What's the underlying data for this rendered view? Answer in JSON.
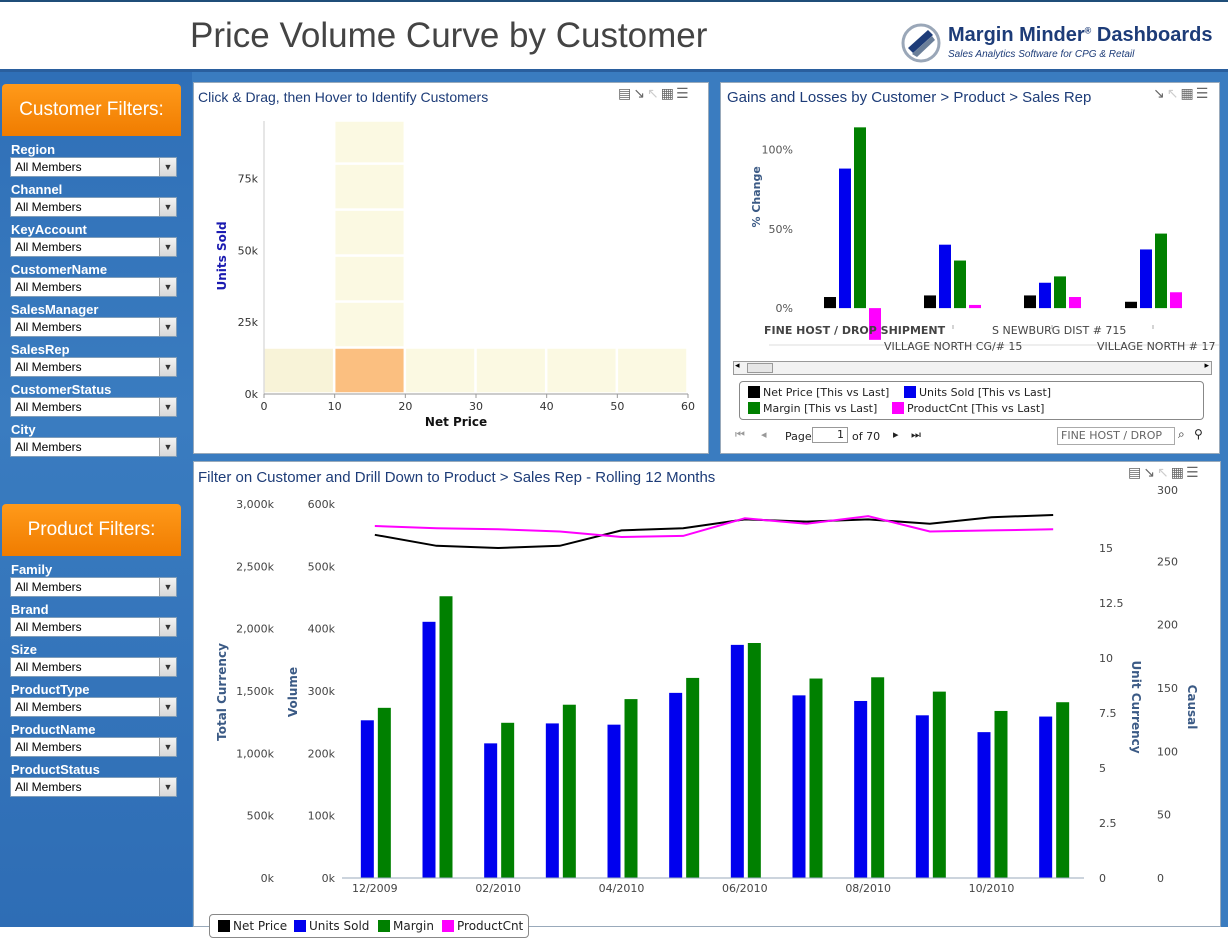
{
  "header": {
    "title": "Price Volume Curve by Customer",
    "logo_name": "Margin Minder",
    "logo_reg": "®",
    "logo_suffix": "Dashboards",
    "logo_tagline": "Sales Analytics Software for CPG & Retail"
  },
  "customer_filters": {
    "heading": "Customer Filters:",
    "items": [
      {
        "label": "Region",
        "value": "All Members"
      },
      {
        "label": "Channel",
        "value": "All Members"
      },
      {
        "label": "KeyAccount",
        "value": "All Members"
      },
      {
        "label": "CustomerName",
        "value": "All Members"
      },
      {
        "label": "SalesManager",
        "value": "All Members"
      },
      {
        "label": "SalesRep",
        "value": "All Members"
      },
      {
        "label": "CustomerStatus",
        "value": "All Members"
      },
      {
        "label": "City",
        "value": "All Members"
      }
    ]
  },
  "product_filters": {
    "heading": "Product Filters:",
    "items": [
      {
        "label": "Family",
        "value": "All Members"
      },
      {
        "label": "Brand",
        "value": "All Members"
      },
      {
        "label": "Size",
        "value": "All Members"
      },
      {
        "label": "ProductType",
        "value": "All Members"
      },
      {
        "label": "ProductName",
        "value": "All Members"
      },
      {
        "label": "ProductStatus",
        "value": "All Members"
      }
    ]
  },
  "panel1": {
    "title": "Click & Drag, then Hover to Identify Customers"
  },
  "panel2": {
    "title": "Gains and Losses by Customer > Product > Sales Rep",
    "legend": [
      {
        "name": "Net Price [This vs Last]",
        "color": "#000000"
      },
      {
        "name": "Units Sold [This vs Last]",
        "color": "#0000ee"
      },
      {
        "name": "Margin [This vs Last]",
        "color": "#008000"
      },
      {
        "name": "ProductCnt [This vs Last]",
        "color": "#ff00ff"
      }
    ],
    "pager": {
      "page_label": "Page",
      "page_value": "1",
      "of_label": "of 70",
      "search_value": "FINE HOST / DROP"
    }
  },
  "panel3": {
    "title": "Filter on Customer and Drill Down to Product > Sales Rep - Rolling 12 Months",
    "legend": [
      "Net Price",
      "Units Sold",
      "Margin",
      "ProductCnt"
    ]
  },
  "chart_data": [
    {
      "type": "heatmap",
      "title": "Click & Drag, then Hover to Identify Customers",
      "xlabel": "Net Price",
      "ylabel": "Units Sold",
      "x_ticks": [
        "0",
        "10",
        "20",
        "30",
        "40",
        "50",
        "60"
      ],
      "y_ticks": [
        "0k",
        "25k",
        "50k",
        "75k"
      ],
      "xlim": [
        0,
        60
      ],
      "ylim": [
        0,
        95000
      ],
      "cells": [
        {
          "x0": 0,
          "x1": 10,
          "y0": 0,
          "y1": 16000,
          "intensity": 0.3
        },
        {
          "x0": 10,
          "x1": 20,
          "y0": 0,
          "y1": 16000,
          "intensity": 1.0
        },
        {
          "x0": 20,
          "x1": 30,
          "y0": 0,
          "y1": 16000,
          "intensity": 0.15
        },
        {
          "x0": 30,
          "x1": 40,
          "y0": 0,
          "y1": 16000,
          "intensity": 0.15
        },
        {
          "x0": 40,
          "x1": 50,
          "y0": 0,
          "y1": 16000,
          "intensity": 0.15
        },
        {
          "x0": 50,
          "x1": 60,
          "y0": 0,
          "y1": 16000,
          "intensity": 0.15
        },
        {
          "x0": 10,
          "x1": 20,
          "y0": 16000,
          "y1": 32000,
          "intensity": 0.15
        },
        {
          "x0": 10,
          "x1": 20,
          "y0": 32000,
          "y1": 48000,
          "intensity": 0.15
        },
        {
          "x0": 10,
          "x1": 20,
          "y0": 48000,
          "y1": 64000,
          "intensity": 0.15
        },
        {
          "x0": 10,
          "x1": 20,
          "y0": 64000,
          "y1": 80000,
          "intensity": 0.15
        },
        {
          "x0": 10,
          "x1": 20,
          "y0": 80000,
          "y1": 95000,
          "intensity": 0.15
        }
      ]
    },
    {
      "type": "bar",
      "title": "Gains and Losses by Customer > Product > Sales Rep",
      "ylabel": "% Change",
      "y_ticks": [
        "0%",
        "50%",
        "100%"
      ],
      "ylim": [
        -22,
        118
      ],
      "categories": [
        "FINE HOST / DROP SHIPMENT",
        "VILLAGE NORTH CG/# 15",
        "S NEWBURG DIST # 715",
        "VILLAGE NORTH # 17"
      ],
      "series": [
        {
          "name": "Net Price [This vs Last]",
          "color": "#000000",
          "values": [
            7,
            8,
            8,
            4
          ]
        },
        {
          "name": "Units Sold [This vs Last]",
          "color": "#0000ee",
          "values": [
            88,
            40,
            16,
            37
          ]
        },
        {
          "name": "Margin [This vs Last]",
          "color": "#008000",
          "values": [
            114,
            30,
            20,
            47
          ]
        },
        {
          "name": "ProductCnt [This vs Last]",
          "color": "#ff00ff",
          "values": [
            -20,
            2,
            7,
            10
          ]
        }
      ]
    },
    {
      "type": "bar",
      "title": "Filter on Customer and Drill Down to Product > Sales Rep - Rolling 12 Months",
      "left_axes": [
        {
          "label": "Total Currency",
          "ticks": [
            "0k",
            "500k",
            "1,000k",
            "1,500k",
            "2,000k",
            "2,500k",
            "3,000k"
          ]
        },
        {
          "label": "Volume",
          "ticks": [
            "0k",
            "100k",
            "200k",
            "300k",
            "400k",
            "500k",
            "600k"
          ]
        }
      ],
      "right_axes": [
        {
          "label": "Unit Currency",
          "ticks": [
            "0",
            "2.5",
            "5",
            "7.5",
            "10",
            "12.5",
            "15"
          ]
        },
        {
          "label": "Causal",
          "ticks": [
            "0",
            "50",
            "100",
            "150",
            "200",
            "250",
            "300"
          ]
        }
      ],
      "x_tick_labels": [
        "12/2009",
        "02/2010",
        "04/2010",
        "06/2010",
        "08/2010",
        "10/2010"
      ],
      "categories": [
        "12/2009",
        "01/2010",
        "02/2010",
        "03/2010",
        "04/2010",
        "05/2010",
        "06/2010",
        "07/2010",
        "08/2010",
        "09/2010",
        "10/2010",
        "11/2010"
      ],
      "ylim_volume": [
        0,
        600000
      ],
      "ylim_unit_currency": [
        0,
        17
      ],
      "series": [
        {
          "name": "Units Sold",
          "color": "#0000ee",
          "kind": "bar",
          "values": [
            253000,
            411000,
            216000,
            248000,
            246000,
            297000,
            374000,
            293000,
            284000,
            261000,
            234000,
            259000
          ]
        },
        {
          "name": "Margin",
          "color": "#008000",
          "kind": "bar",
          "values": [
            273000,
            452000,
            249000,
            278000,
            287000,
            321000,
            377000,
            320000,
            322000,
            299000,
            268000,
            282000
          ]
        },
        {
          "name": "Net Price",
          "color": "#000000",
          "kind": "line",
          "values": [
            15.6,
            15.1,
            15.0,
            15.1,
            15.8,
            15.9,
            16.3,
            16.2,
            16.3,
            16.1,
            16.4,
            16.5
          ]
        },
        {
          "name": "ProductCnt",
          "color": "#ff00ff",
          "kind": "line",
          "values": [
            16.0,
            15.9,
            15.85,
            15.75,
            15.5,
            15.55,
            16.35,
            16.1,
            16.45,
            15.75,
            15.8,
            15.85
          ]
        }
      ]
    }
  ]
}
